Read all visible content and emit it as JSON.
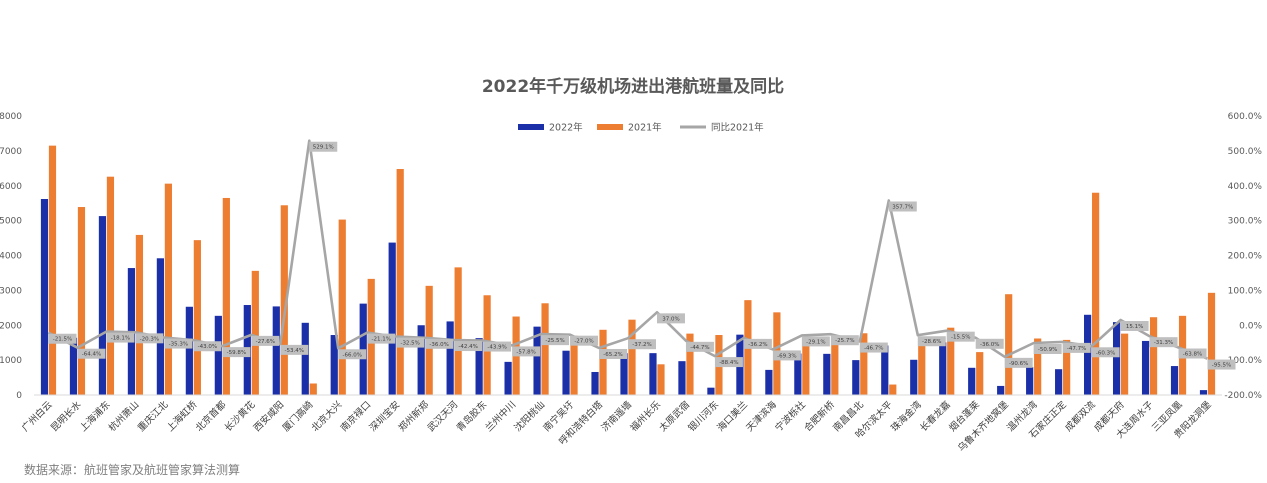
{
  "source_note": "数据来源：航班管家及航班管家算法测算",
  "colors": {
    "s2022": "#1b2fa8",
    "s2021": "#ed7d31",
    "yoy": "#a6a6a6"
  },
  "chart_data": {
    "type": "bar",
    "title": "2022年千万级机场进出港航班量及同比",
    "legend_position": "top-center",
    "grid": false,
    "categories": [
      "广州白云",
      "昆明长水",
      "上海浦东",
      "杭州萧山",
      "重庆江北",
      "上海虹桥",
      "北京首都",
      "长沙黄花",
      "西安咸阳",
      "厦门高崎",
      "北京大兴",
      "南京禄口",
      "深圳宝安",
      "郑州新郑",
      "武汉天河",
      "青岛胶东",
      "兰州中川",
      "沈阳桃仙",
      "南宁吴圩",
      "呼和浩特白塔",
      "济南遥墙",
      "福州长乐",
      "太原武宿",
      "银川河东",
      "海口美兰",
      "天津滨海",
      "宁波栎社",
      "合肥新桥",
      "南昌昌北",
      "哈尔滨太平",
      "珠海金湾",
      "长春龙嘉",
      "烟台蓬莱",
      "乌鲁木齐地窝堡",
      "温州龙湾",
      "石家庄正定",
      "成都双流",
      "成都天府",
      "大连周水子",
      "三亚凤凰",
      "贵阳龙洞堡"
    ],
    "y_left": {
      "min": 0,
      "max": 8000,
      "step": 1000
    },
    "y_right": {
      "min": -200,
      "max": 600,
      "step": 100,
      "unit": "%"
    },
    "series": [
      {
        "name": "2022年",
        "type": "bar",
        "axis": "left",
        "values": [
          5620,
          1640,
          5130,
          3640,
          3920,
          2530,
          2270,
          2580,
          2540,
          2070,
          1720,
          2620,
          4370,
          2000,
          2110,
          1630,
          950,
          1960,
          1270,
          660,
          1200,
          1200,
          970,
          210,
          1730,
          720,
          1190,
          1180,
          1000,
          1420,
          1010,
          1510,
          780,
          260,
          800,
          740,
          2300,
          2090,
          1550,
          830,
          140
        ]
      },
      {
        "name": "2021年",
        "type": "bar",
        "axis": "right_none",
        "values": [
          7150,
          5390,
          6260,
          4590,
          6060,
          4440,
          5650,
          3560,
          5440,
          330,
          5030,
          3330,
          6480,
          3130,
          3660,
          2860,
          2250,
          2630,
          1700,
          1870,
          2160,
          880,
          1760,
          1720,
          2720,
          2370,
          1620,
          1610,
          1770,
          300,
          1410,
          1930,
          1230,
          2890,
          1620,
          1580,
          5800,
          1760,
          2230,
          2270,
          2930
        ]
      },
      {
        "name": "同比2021年",
        "type": "line",
        "axis": "right",
        "values": [
          -21.5,
          -64.4,
          -18.1,
          -20.3,
          -35.3,
          -43.0,
          -59.8,
          -27.6,
          -53.4,
          529.1,
          -66.0,
          -21.1,
          -32.5,
          -36.0,
          -42.4,
          -43.9,
          -57.8,
          -25.5,
          -27.0,
          -65.2,
          -37.2,
          37.0,
          -44.7,
          -88.4,
          -36.2,
          -69.3,
          -29.1,
          -25.7,
          -46.7,
          357.7,
          -28.6,
          -15.5,
          -36.0,
          -90.6,
          -50.9,
          -47.7,
          -60.3,
          15.1,
          -31.3,
          -63.8,
          -95.5
        ]
      }
    ],
    "data_labels": [
      "-21.5%",
      "-64.4%",
      "-18.1%",
      "-20.3%",
      "-35.3%",
      "-43.0%",
      "-59.8%",
      "-27.6%",
      "-53.4%",
      "529.1%",
      "-66.0%",
      "-21.1%",
      "-32.5%",
      "-36.0%",
      "-42.4%",
      "-43.9%",
      "-57.8%",
      "-25.5%",
      "-27.0%",
      "-65.2%",
      "-37.2%",
      "37.0%",
      "-44.7%",
      "-88.4%",
      "-36.2%",
      "-69.3%",
      "-29.1%",
      "-25.7%",
      "-46.7%",
      "357.7%",
      "-28.6%",
      "-15.5%",
      "-36.0%",
      "-90.6%",
      "-50.9%",
      "-47.7%",
      "-60.3%",
      "15.1%",
      "-31.3%",
      "-63.8%",
      "-95.5%"
    ]
  }
}
